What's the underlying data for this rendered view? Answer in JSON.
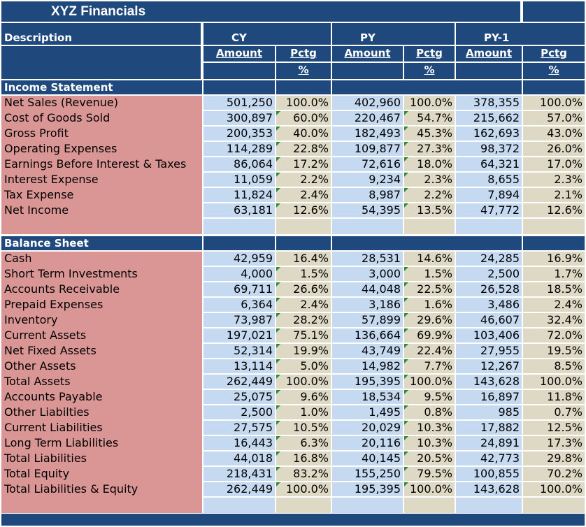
{
  "title": "XYZ Financials",
  "headers": {
    "description": "Description",
    "periods": [
      "CY",
      "PY",
      "PY-1"
    ],
    "amount": "Amount",
    "pctg": "Pctg",
    "pct_sign": "%"
  },
  "colors": {
    "header": "#1f497d",
    "label_fill": "#da9694",
    "amount_fill": "#c5d9f1",
    "pctg_fill": "#ddd9c4"
  },
  "sections": [
    {
      "title": "Income Statement",
      "rows": [
        {
          "label": "Net Sales (Revenue)",
          "values": [
            "501,250",
            "100.0%",
            "402,960",
            "100.0%",
            "378,355",
            "100.0%"
          ]
        },
        {
          "label": "Cost of Goods Sold",
          "values": [
            "300,897",
            "60.0%",
            "220,467",
            "54.7%",
            "215,662",
            "57.0%"
          ]
        },
        {
          "label": "Gross Profit",
          "values": [
            "200,353",
            "40.0%",
            "182,493",
            "45.3%",
            "162,693",
            "43.0%"
          ]
        },
        {
          "label": "Operating Expenses",
          "values": [
            "114,289",
            "22.8%",
            "109,877",
            "27.3%",
            "98,372",
            "26.0%"
          ]
        },
        {
          "label": "Earnings Before Interest & Taxes",
          "values": [
            "86,064",
            "17.2%",
            "72,616",
            "18.0%",
            "64,321",
            "17.0%"
          ]
        },
        {
          "label": "Interest Expense",
          "values": [
            "11,059",
            "2.2%",
            "9,234",
            "2.3%",
            "8,655",
            "2.3%"
          ]
        },
        {
          "label": "Tax Expense",
          "values": [
            "11,824",
            "2.4%",
            "8,987",
            "2.2%",
            "7,894",
            "2.1%"
          ]
        },
        {
          "label": "Net Income",
          "values": [
            "63,181",
            "12.6%",
            "54,395",
            "13.5%",
            "47,772",
            "12.6%"
          ]
        }
      ]
    },
    {
      "title": "Balance Sheet",
      "rows": [
        {
          "label": "Cash",
          "values": [
            "42,959",
            "16.4%",
            "28,531",
            "14.6%",
            "24,285",
            "16.9%"
          ]
        },
        {
          "label": "Short Term Investments",
          "values": [
            "4,000",
            "1.5%",
            "3,000",
            "1.5%",
            "2,500",
            "1.7%"
          ]
        },
        {
          "label": "Accounts Receivable",
          "values": [
            "69,711",
            "26.6%",
            "44,048",
            "22.5%",
            "26,528",
            "18.5%"
          ]
        },
        {
          "label": "Prepaid Expenses",
          "values": [
            "6,364",
            "2.4%",
            "3,186",
            "1.6%",
            "3,486",
            "2.4%"
          ]
        },
        {
          "label": "Inventory",
          "values": [
            "73,987",
            "28.2%",
            "57,899",
            "29.6%",
            "46,607",
            "32.4%"
          ]
        },
        {
          "label": "Current Assets",
          "values": [
            "197,021",
            "75.1%",
            "136,664",
            "69.9%",
            "103,406",
            "72.0%"
          ]
        },
        {
          "label": "Net Fixed Assets",
          "values": [
            "52,314",
            "19.9%",
            "43,749",
            "22.4%",
            "27,955",
            "19.5%"
          ]
        },
        {
          "label": "Other Assets",
          "values": [
            "13,114",
            "5.0%",
            "14,982",
            "7.7%",
            "12,267",
            "8.5%"
          ]
        },
        {
          "label": "Total Assets",
          "values": [
            "262,449",
            "100.0%",
            "195,395",
            "100.0%",
            "143,628",
            "100.0%"
          ]
        },
        {
          "label": "Accounts Payable",
          "values": [
            "25,075",
            "9.6%",
            "18,534",
            "9.5%",
            "16,897",
            "11.8%"
          ]
        },
        {
          "label": "Other Liabilties",
          "values": [
            "2,500",
            "1.0%",
            "1,495",
            "0.8%",
            "985",
            "0.7%"
          ]
        },
        {
          "label": "Current Liabilities",
          "values": [
            "27,575",
            "10.5%",
            "20,029",
            "10.3%",
            "17,882",
            "12.5%"
          ]
        },
        {
          "label": "Long Term Liabilities",
          "values": [
            "16,443",
            "6.3%",
            "20,116",
            "10.3%",
            "24,891",
            "17.3%"
          ]
        },
        {
          "label": "Total Liabilities",
          "values": [
            "44,018",
            "16.8%",
            "40,145",
            "20.5%",
            "42,773",
            "29.8%"
          ]
        },
        {
          "label": "Total  Equity",
          "values": [
            "218,431",
            "83.2%",
            "155,250",
            "79.5%",
            "100,855",
            "70.2%"
          ]
        },
        {
          "label": "Total Liabilities & Equity",
          "values": [
            "262,449",
            "100.0%",
            "195,395",
            "100.0%",
            "143,628",
            "100.0%"
          ]
        }
      ]
    }
  ]
}
